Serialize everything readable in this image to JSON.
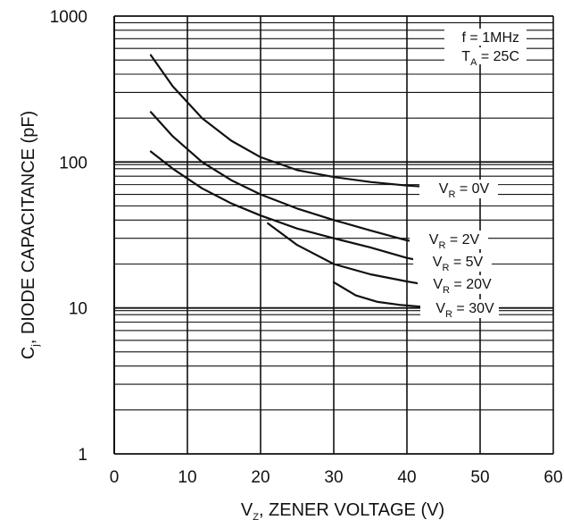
{
  "chart_data": {
    "type": "line",
    "x_axis": {
      "label": {
        "main": "V",
        "subscript": "Z",
        "rest": ", ZENER VOLTAGE (V)"
      },
      "range": [
        0,
        60
      ],
      "ticks": [
        "0",
        "10",
        "20",
        "30",
        "40",
        "50",
        "60"
      ],
      "scale": "linear"
    },
    "y_axis": {
      "label": {
        "main": "C",
        "subscript": "j",
        "rest": ", DIODE CAPACITANCE (pF)"
      },
      "range": [
        1,
        1000
      ],
      "ticks": [
        "1",
        "10",
        "100",
        "1000"
      ],
      "scale": "log"
    },
    "grid": "vertical every 10 V; horizontal at each log minor decade step",
    "conditions": [
      {
        "main": "f = 1MHz",
        "subscript": "",
        "rest": ""
      },
      {
        "main": "T",
        "subscript": "A",
        "rest": " = 25C"
      }
    ],
    "series": [
      {
        "name": {
          "main": "V",
          "subscript": "R",
          "rest": " = 0V"
        },
        "x": [
          5,
          8,
          12,
          16,
          20,
          25,
          30,
          35,
          40,
          42
        ],
        "y": [
          540,
          330,
          200,
          140,
          108,
          88,
          79,
          73,
          69,
          68
        ]
      },
      {
        "name": {
          "main": "V",
          "subscript": "R",
          "rest": " = 2V"
        },
        "x": [
          5,
          8,
          12,
          16,
          20,
          25,
          30,
          35,
          40,
          42
        ],
        "y": [
          220,
          150,
          100,
          75,
          60,
          48,
          40,
          34,
          29,
          28
        ]
      },
      {
        "name": {
          "main": "V",
          "subscript": "R",
          "rest": " = 5V"
        },
        "x": [
          5,
          8,
          12,
          16,
          20,
          25,
          30,
          35,
          40,
          42
        ],
        "y": [
          118,
          90,
          66,
          52,
          43,
          35,
          30,
          26,
          22,
          21
        ]
      },
      {
        "name": {
          "main": "V",
          "subscript": "R",
          "rest": " = 20V"
        },
        "x": [
          21,
          25,
          30,
          35,
          40,
          42
        ],
        "y": [
          38,
          27,
          20,
          17,
          15.2,
          14.6
        ]
      },
      {
        "name": {
          "main": "V",
          "subscript": "R",
          "rest": " = 30V"
        },
        "x": [
          30,
          33,
          36,
          39,
          42
        ],
        "y": [
          15,
          12.2,
          11,
          10.5,
          10.2
        ]
      }
    ],
    "colors": {
      "curve": "#111111",
      "grid": "#111111",
      "background": "#ffffff"
    }
  }
}
